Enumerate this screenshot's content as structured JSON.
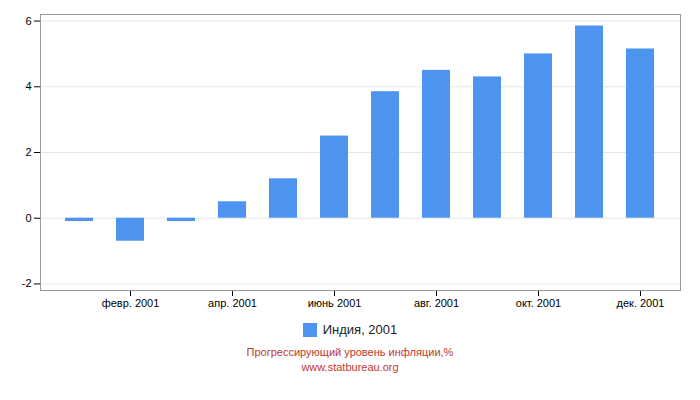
{
  "chart_data": {
    "type": "bar",
    "categories": [
      null,
      "февр. 2001",
      null,
      "апр. 2001",
      null,
      "июнь 2001",
      null,
      "авг. 2001",
      null,
      "окт. 2001",
      null,
      "дек. 2001"
    ],
    "series": [
      {
        "name": "Индия, 2001",
        "color": "#4d94f0",
        "values": [
          -0.1,
          -0.7,
          -0.1,
          0.5,
          1.2,
          2.5,
          3.85,
          4.5,
          4.3,
          5.0,
          5.85,
          5.15
        ]
      }
    ],
    "ylim": [
      -2.2,
      6.2
    ],
    "yticks": [
      -2,
      0,
      2,
      4,
      6
    ],
    "grid": true,
    "legend": "bottom",
    "annotations": [
      "Прогрессирующий уровень инфляции,%",
      "www.statbureau.org"
    ]
  }
}
